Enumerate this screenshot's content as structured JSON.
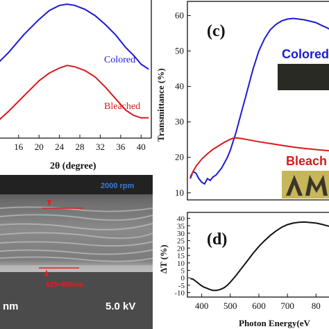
{
  "colors": {
    "colored": "#1a1ad6",
    "bleached": "#d61a1a",
    "black": "#111111",
    "sem_label": "#3a7bd5",
    "sem_marker": "#e02020"
  },
  "chart_data": [
    {
      "panel": "xrd",
      "type": "line",
      "xlabel": "2θ (degree)",
      "ylabel": "",
      "xlim": [
        11,
        42
      ],
      "xticks": [
        "16",
        "20",
        "24",
        "28",
        "32",
        "36",
        "40"
      ],
      "series": [
        {
          "name": "Colored",
          "x": [
            11,
            14,
            17,
            20,
            22,
            24,
            25.5,
            27,
            29,
            31,
            33,
            35,
            37,
            38.5,
            40,
            41.5
          ],
          "y": [
            0.5,
            0.62,
            0.76,
            0.88,
            0.95,
            0.99,
            1.0,
            0.99,
            0.96,
            0.91,
            0.84,
            0.76,
            0.66,
            0.6,
            0.53,
            0.49
          ]
        },
        {
          "name": "Bleached",
          "x": [
            11,
            14,
            17,
            20,
            22,
            24,
            25.5,
            27,
            29,
            31,
            33,
            35,
            37,
            38.5,
            40,
            41.5
          ],
          "y": [
            0.05,
            0.16,
            0.28,
            0.4,
            0.46,
            0.5,
            0.52,
            0.51,
            0.48,
            0.43,
            0.35,
            0.26,
            0.17,
            0.13,
            0.11,
            0.11
          ]
        }
      ]
    },
    {
      "panel": "c",
      "label": "(c)",
      "type": "line",
      "xlabel": "",
      "ylabel": "Transmittance (%)",
      "xlim": [
        350,
        860
      ],
      "ylim": [
        8,
        64
      ],
      "yticks": [
        "10",
        "20",
        "30",
        "40",
        "50",
        "60"
      ],
      "series": [
        {
          "name": "Colored",
          "x": [
            360,
            370,
            380,
            390,
            400,
            410,
            420,
            430,
            440,
            450,
            460,
            470,
            480,
            490,
            500,
            510,
            520,
            530,
            540,
            550,
            560,
            570,
            580,
            590,
            600,
            620,
            640,
            660,
            680,
            700,
            720,
            740,
            760,
            780,
            800,
            820,
            840,
            860
          ],
          "y": [
            14,
            16,
            15.5,
            14,
            13,
            12.5,
            14,
            13.5,
            14.5,
            15,
            16,
            17,
            18.5,
            20,
            22,
            24.5,
            27,
            30,
            33,
            36,
            39,
            42,
            45,
            47.5,
            50,
            53.5,
            56,
            57.5,
            58.5,
            59,
            59.2,
            59,
            58.8,
            58.4,
            58,
            57.2,
            56.5,
            55.5
          ]
        },
        {
          "name": "Bleached",
          "x": [
            360,
            370,
            380,
            390,
            400,
            420,
            440,
            460,
            480,
            500,
            510,
            520,
            540,
            560,
            580,
            600,
            640,
            680,
            720,
            760,
            800,
            840,
            860
          ],
          "y": [
            14.5,
            16,
            17.5,
            18.5,
            19.5,
            21,
            22.3,
            23.3,
            24.3,
            25.1,
            25.4,
            25.5,
            25.3,
            25,
            24.7,
            24.4,
            23.9,
            23.4,
            22.9,
            22.5,
            22.2,
            21.9,
            21.8
          ]
        }
      ],
      "annotations": {
        "colored": "Colored",
        "bleached": "Bleach"
      }
    },
    {
      "panel": "d",
      "label": "(d)",
      "type": "line",
      "xlabel": "Photon Energy(eV",
      "ylabel": "ΔT (%)",
      "xlim": [
        350,
        860
      ],
      "ylim": [
        -13,
        44
      ],
      "xticks": [
        "400",
        "500",
        "600",
        "700",
        "80"
      ],
      "yticks": [
        "-10",
        "-5",
        "0",
        "5",
        "10",
        "15",
        "20",
        "25",
        "30",
        "35",
        "40"
      ],
      "series": [
        {
          "name": "ΔT",
          "x": [
            360,
            370,
            380,
            390,
            400,
            410,
            420,
            430,
            440,
            450,
            460,
            470,
            480,
            490,
            500,
            520,
            540,
            560,
            580,
            600,
            620,
            640,
            660,
            680,
            700,
            720,
            740,
            760,
            780,
            800,
            820,
            840,
            860
          ],
          "y": [
            -0.5,
            -1,
            -2.5,
            -4,
            -5.5,
            -6.5,
            -7.2,
            -8,
            -8.5,
            -8.5,
            -8.2,
            -7.5,
            -6.5,
            -5,
            -3,
            1.5,
            6.5,
            11.5,
            16.5,
            21,
            25,
            28.5,
            31.5,
            34,
            35.8,
            36.8,
            37.3,
            37.5,
            37.2,
            36.8,
            36,
            35,
            34
          ]
        }
      ]
    }
  ],
  "xrd_legend": {
    "colored": "Colored",
    "bleached": "Bleached"
  },
  "sem": {
    "rpm_label": "2000 rpm",
    "thickness_label": "625~650nm",
    "scale_unit": "nm",
    "voltage": "5.0 kV"
  }
}
